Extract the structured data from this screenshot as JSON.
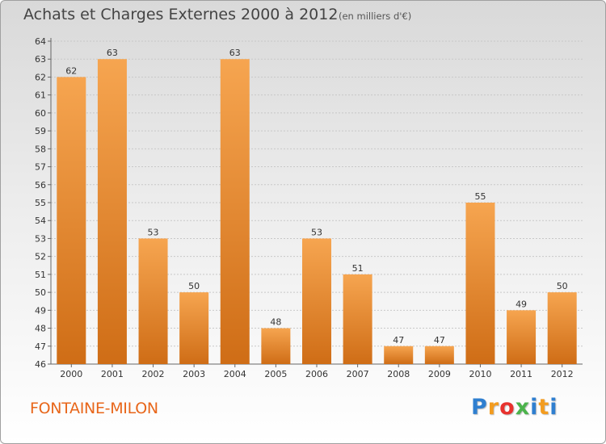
{
  "header": {
    "title": "Achats et Charges Externes 2000 à 2012",
    "subtitle": "(en milliers d'€)"
  },
  "footer": {
    "commune": "FONTAINE-MILON",
    "logo": "Proxiti"
  },
  "colors": {
    "bar_light": "#f6a550",
    "bar_dark": "#cf6d16",
    "grid": "#c8c8c8"
  },
  "chart_data": {
    "type": "bar",
    "title": "Achats et Charges Externes 2000 à 2012",
    "subtitle": "(en milliers d'€)",
    "xlabel": "",
    "ylabel": "",
    "categories": [
      "2000",
      "2001",
      "2002",
      "2003",
      "2004",
      "2005",
      "2006",
      "2007",
      "2008",
      "2009",
      "2010",
      "2011",
      "2012"
    ],
    "values": [
      62,
      63,
      53,
      50,
      63,
      48,
      53,
      51,
      47,
      47,
      55,
      49,
      50
    ],
    "ylim": [
      46,
      64
    ],
    "yticks": [
      46,
      47,
      48,
      49,
      50,
      51,
      52,
      53,
      54,
      55,
      56,
      57,
      58,
      59,
      60,
      61,
      62,
      63,
      64
    ],
    "grid": true,
    "legend": "none"
  }
}
